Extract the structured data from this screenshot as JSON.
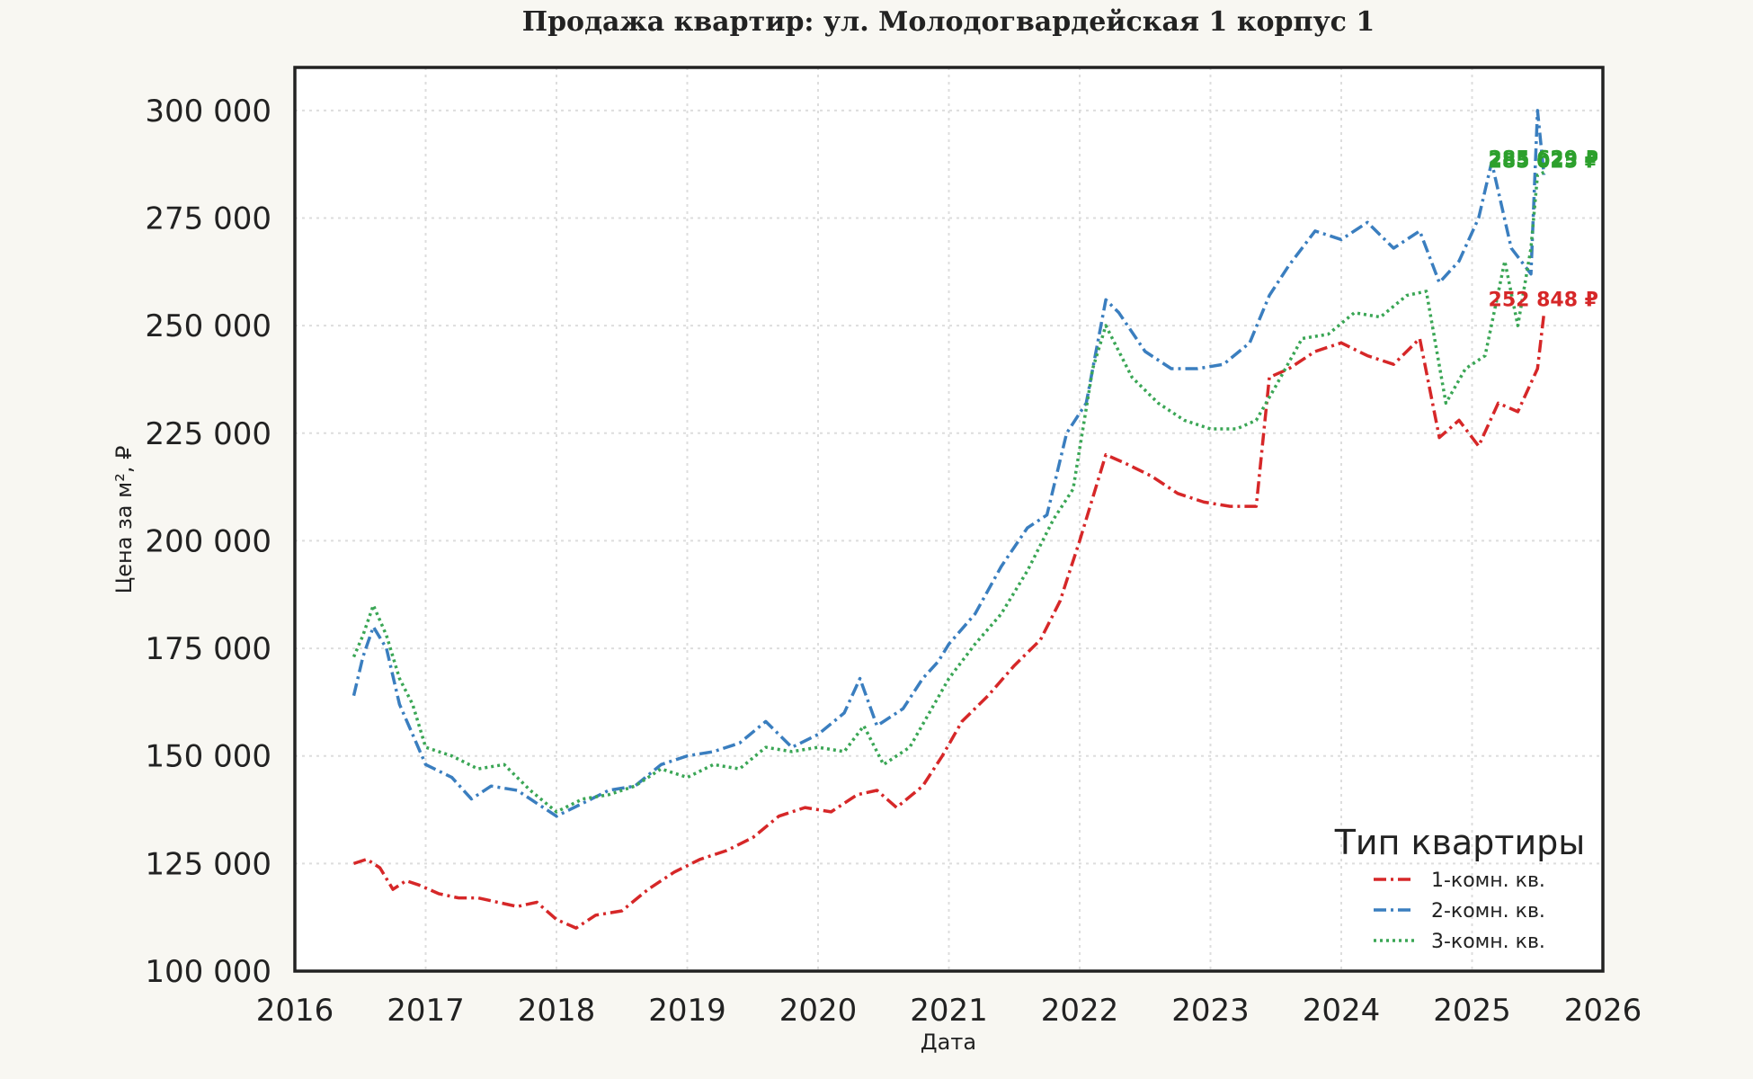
{
  "chart_data": {
    "type": "line",
    "title": "Продажа квартир: ул. Молодогвардейская 1 корпус 1",
    "xlabel": "Дата",
    "ylabel": "Цена за м², ₽",
    "xlim": [
      2016,
      2026
    ],
    "ylim": [
      100000,
      310000
    ],
    "x_ticks": [
      2016,
      2017,
      2018,
      2019,
      2020,
      2021,
      2022,
      2023,
      2024,
      2025,
      2026
    ],
    "y_ticks": [
      100000,
      125000,
      150000,
      175000,
      200000,
      225000,
      250000,
      275000,
      300000
    ],
    "y_tick_labels": [
      "100 000",
      "125 000",
      "150 000",
      "175 000",
      "200 000",
      "225 000",
      "250 000",
      "275 000",
      "300 000"
    ],
    "grid": true,
    "legend": {
      "title": "Тип квартиры",
      "position": "bottom-right"
    },
    "annotations": [
      {
        "text": "252 848 ₽",
        "x": 2025.55,
        "y": 252848,
        "color": "#d62728"
      },
      {
        "text": "285 629 ₽",
        "x": 2025.55,
        "y": 285629,
        "color": "#2ca02c"
      },
      {
        "text": "285 025 ₽",
        "x": 2025.55,
        "y": 285025,
        "color": "#2ca02c"
      }
    ],
    "series": [
      {
        "name": "1-комн. кв.",
        "color": "#d62728",
        "dash": "dashdot",
        "x": [
          2016.45,
          2016.55,
          2016.65,
          2016.75,
          2016.85,
          2016.95,
          2017.1,
          2017.25,
          2017.4,
          2017.55,
          2017.7,
          2017.85,
          2018.0,
          2018.15,
          2018.3,
          2018.5,
          2018.7,
          2018.9,
          2019.1,
          2019.3,
          2019.5,
          2019.7,
          2019.9,
          2020.1,
          2020.3,
          2020.45,
          2020.6,
          2020.8,
          2020.95,
          2021.1,
          2021.3,
          2021.5,
          2021.7,
          2021.85,
          2022.0,
          2022.2,
          2022.35,
          2022.55,
          2022.75,
          2022.95,
          2023.15,
          2023.35,
          2023.45,
          2023.6,
          2023.8,
          2024.0,
          2024.2,
          2024.4,
          2024.6,
          2024.75,
          2024.9,
          2025.05,
          2025.2,
          2025.35,
          2025.5,
          2025.55
        ],
        "y": [
          125000,
          126000,
          124000,
          119000,
          121000,
          120000,
          118000,
          117000,
          117000,
          116000,
          115000,
          116000,
          112000,
          110000,
          113000,
          114000,
          119000,
          123000,
          126000,
          128000,
          131000,
          136000,
          138000,
          137000,
          141000,
          142000,
          138000,
          143000,
          150000,
          158000,
          164000,
          171000,
          177000,
          186000,
          200000,
          220000,
          218000,
          215000,
          211000,
          209000,
          208000,
          208000,
          238000,
          240000,
          244000,
          246000,
          243000,
          241000,
          247000,
          224000,
          228000,
          222000,
          232000,
          230000,
          240000,
          252848
        ]
      },
      {
        "name": "2-комн. кв.",
        "color": "#3a7ebf",
        "dash": "dashdot",
        "x": [
          2016.45,
          2016.52,
          2016.6,
          2016.7,
          2016.8,
          2016.9,
          2017.0,
          2017.2,
          2017.35,
          2017.5,
          2017.7,
          2017.85,
          2018.0,
          2018.2,
          2018.4,
          2018.6,
          2018.8,
          2019.0,
          2019.2,
          2019.4,
          2019.6,
          2019.8,
          2020.0,
          2020.2,
          2020.32,
          2020.45,
          2020.65,
          2020.8,
          2020.92,
          2021.0,
          2021.2,
          2021.4,
          2021.6,
          2021.75,
          2021.9,
          2022.05,
          2022.2,
          2022.3,
          2022.5,
          2022.7,
          2022.9,
          2023.1,
          2023.3,
          2023.45,
          2023.6,
          2023.8,
          2024.0,
          2024.2,
          2024.4,
          2024.6,
          2024.75,
          2024.9,
          2025.05,
          2025.15,
          2025.3,
          2025.45,
          2025.5,
          2025.55
        ],
        "y": [
          164000,
          173000,
          180000,
          175000,
          162000,
          155000,
          148000,
          145000,
          140000,
          143000,
          142000,
          139000,
          136000,
          139000,
          142000,
          143000,
          148000,
          150000,
          151000,
          153000,
          158000,
          152000,
          155000,
          160000,
          168000,
          157000,
          161000,
          168000,
          172000,
          176000,
          183000,
          194000,
          203000,
          206000,
          225000,
          232000,
          256000,
          253000,
          244000,
          240000,
          240000,
          241000,
          246000,
          257000,
          264000,
          272000,
          270000,
          274000,
          268000,
          272000,
          260000,
          265000,
          275000,
          288000,
          268000,
          262000,
          300000,
          285025
        ]
      },
      {
        "name": "3-комн. кв.",
        "color": "#3aa655",
        "dash": "dotted",
        "x": [
          2016.45,
          2016.52,
          2016.6,
          2016.7,
          2016.8,
          2016.9,
          2017.0,
          2017.2,
          2017.4,
          2017.6,
          2017.8,
          2018.0,
          2018.2,
          2018.4,
          2018.6,
          2018.8,
          2019.0,
          2019.2,
          2019.4,
          2019.6,
          2019.8,
          2020.0,
          2020.2,
          2020.35,
          2020.5,
          2020.7,
          2020.85,
          2021.0,
          2021.2,
          2021.4,
          2021.6,
          2021.8,
          2021.95,
          2022.1,
          2022.2,
          2022.4,
          2022.6,
          2022.8,
          2023.0,
          2023.2,
          2023.35,
          2023.5,
          2023.7,
          2023.9,
          2024.1,
          2024.3,
          2024.5,
          2024.65,
          2024.8,
          2024.95,
          2025.1,
          2025.25,
          2025.35,
          2025.45,
          2025.5,
          2025.55
        ],
        "y": [
          173000,
          178000,
          185000,
          178000,
          168000,
          162000,
          152000,
          150000,
          147000,
          148000,
          142000,
          137000,
          140000,
          141000,
          143000,
          147000,
          145000,
          148000,
          147000,
          152000,
          151000,
          152000,
          151000,
          157000,
          148000,
          152000,
          160000,
          168000,
          176000,
          183000,
          193000,
          205000,
          212000,
          240000,
          250000,
          238000,
          232000,
          228000,
          226000,
          226000,
          228000,
          236000,
          247000,
          248000,
          253000,
          252000,
          257000,
          258000,
          232000,
          240000,
          243000,
          265000,
          250000,
          268000,
          285000,
          285629
        ]
      }
    ]
  }
}
